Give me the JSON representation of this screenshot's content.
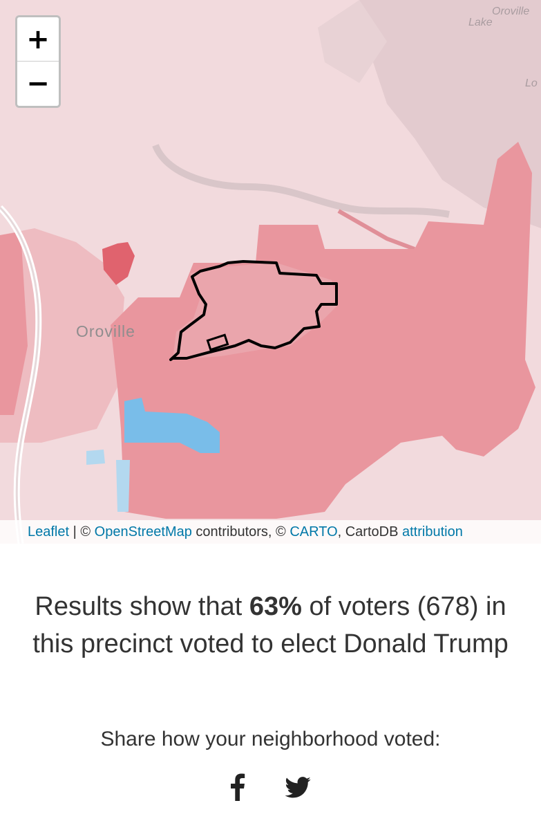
{
  "map": {
    "zoom_in_label": "+",
    "zoom_out_label": "−",
    "city_label": "Oroville",
    "lake_label_1": "Oroville",
    "lake_label_2": "Lake",
    "lake_label_3": "Lo",
    "attribution": {
      "leaflet": "Leaflet",
      "sep1": " | © ",
      "osm": "OpenStreetMap",
      "contributors": " contributors, © ",
      "carto": "CARTO",
      "cartodb": ", CartoDB ",
      "attr": "attribution"
    },
    "colors": {
      "background": "#f2dadd",
      "light_red": "#eebcc1",
      "medium_red": "#e9969e",
      "dark_red": "#e0636e",
      "blue": "#79bde9",
      "light_blue": "#b3d8ef",
      "outline": "#000000"
    }
  },
  "summary": {
    "prefix": "Results show that ",
    "percent": "63%",
    "middle": " of voters (678) in this precinct voted to elect Donald Trump"
  },
  "share": {
    "label": "Share how your neighborhood voted:",
    "facebook_icon": "facebook-icon",
    "twitter_icon": "twitter-icon"
  }
}
